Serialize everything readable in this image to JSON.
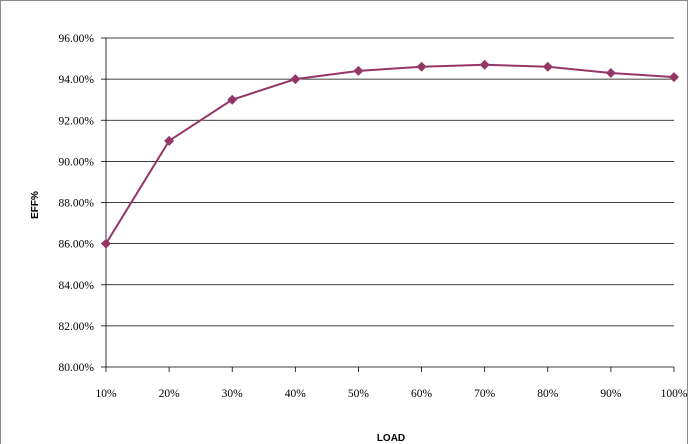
{
  "chart_data": {
    "type": "line",
    "title": "",
    "xlabel": "LOAD",
    "ylabel": "EFF%",
    "categories": [
      "10%",
      "20%",
      "30%",
      "40%",
      "50%",
      "60%",
      "70%",
      "80%",
      "90%",
      "100%"
    ],
    "series": [
      {
        "values": [
          86.0,
          91.0,
          93.0,
          94.0,
          94.4,
          94.6,
          94.7,
          94.6,
          94.3,
          94.1
        ]
      }
    ],
    "ylim": [
      80,
      96
    ],
    "y_ticks": [
      "80.00%",
      "82.00%",
      "84.00%",
      "86.00%",
      "88.00%",
      "90.00%",
      "92.00%",
      "94.00%",
      "96.00%"
    ],
    "grid": "horizontal",
    "legend": "none",
    "colors": {
      "series": "#943766",
      "grid": "#000000",
      "frame": "#8c8c8c"
    },
    "marker": "diamond"
  }
}
